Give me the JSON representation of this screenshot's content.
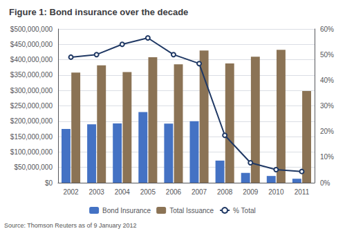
{
  "chart_data": {
    "type": "bar",
    "title": "Figure 1: Bond insurance over the decade",
    "annotations": [
      "Source: Thomson Reuters as of 9 January 2012"
    ],
    "categories": [
      "2002",
      "2003",
      "2004",
      "2005",
      "2006",
      "2007",
      "2008",
      "2009",
      "2010",
      "2011"
    ],
    "series": [
      {
        "name": "Bond Insurance",
        "type": "bar",
        "color": "#4472C4",
        "values": [
          175000000,
          190000000,
          193000000,
          230000000,
          192000000,
          200000000,
          72000000,
          32000000,
          22000000,
          13000000
        ]
      },
      {
        "name": "Total Issuance",
        "type": "bar",
        "color": "#8B7355",
        "values": [
          358000000,
          382000000,
          360000000,
          408000000,
          385000000,
          430000000,
          388000000,
          410000000,
          432000000,
          298000000
        ]
      },
      {
        "name": "% Total",
        "type": "line",
        "axis": "y2",
        "color": "#1F3864",
        "values": [
          0.49,
          0.5,
          0.54,
          0.565,
          0.5,
          0.465,
          0.185,
          0.078,
          0.051,
          0.044
        ]
      }
    ],
    "ylim": [
      0,
      500000000
    ],
    "yticks": [
      {
        "value": 0,
        "label": "$0"
      },
      {
        "value": 50000000,
        "label": "$50,000,000"
      },
      {
        "value": 100000000,
        "label": "$100,000,000"
      },
      {
        "value": 150000000,
        "label": "$150,000,000"
      },
      {
        "value": 200000000,
        "label": "$200,000,000"
      },
      {
        "value": 250000000,
        "label": "$250,000,000"
      },
      {
        "value": 300000000,
        "label": "$300,000,000"
      },
      {
        "value": 350000000,
        "label": "$350,000,000"
      },
      {
        "value": 400000000,
        "label": "$400,000,000"
      },
      {
        "value": 450000000,
        "label": "$450,000,000"
      },
      {
        "value": 500000000,
        "label": "$500,000,000"
      }
    ],
    "y2lim": [
      0,
      0.6
    ],
    "y2ticks": [
      {
        "value": 0,
        "label": "0%"
      },
      {
        "value": 0.1,
        "label": "10%"
      },
      {
        "value": 0.2,
        "label": "20%"
      },
      {
        "value": 0.3,
        "label": "30%"
      },
      {
        "value": 0.4,
        "label": "40%"
      },
      {
        "value": 0.5,
        "label": "50%"
      },
      {
        "value": 0.6,
        "label": "60%"
      }
    ],
    "grid": true,
    "legend": "bottom"
  }
}
